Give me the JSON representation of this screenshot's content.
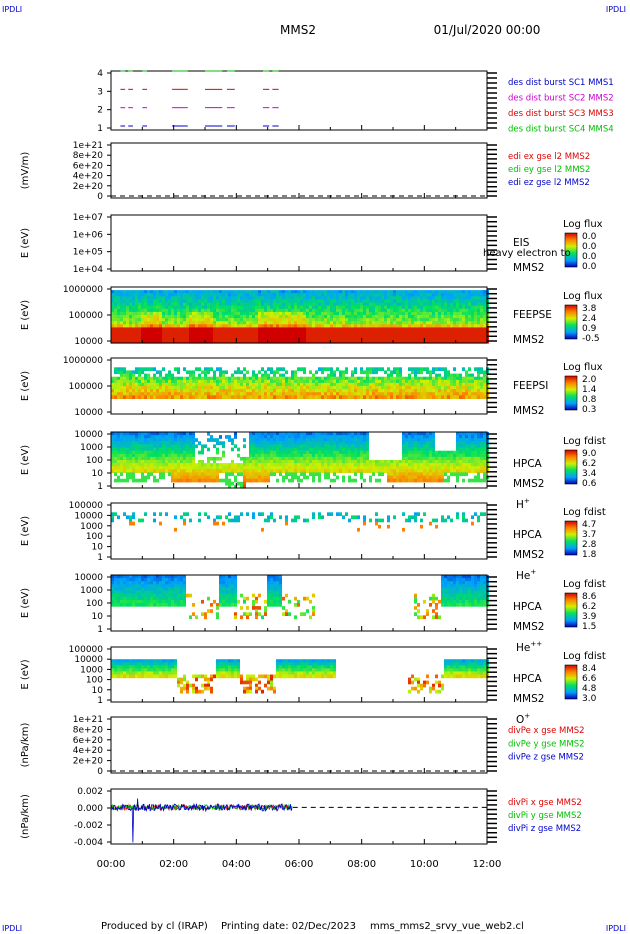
{
  "header": {
    "corner_tl": "IPDLI",
    "corner_tr": "IPDLI",
    "corner_bl": "IPDLI",
    "corner_br": "IPDLI",
    "title": "MMS2",
    "date": "01/Jul/2020 00:00"
  },
  "footer": {
    "produced": "Produced by cl (IRAP)",
    "printing": "Printing date: 02/Dec/2023",
    "file": "mms_mms2_srvy_vue_web2.cl"
  },
  "colors": {
    "red": "#e00000",
    "green": "#00c000",
    "blue": "#0000cc",
    "magenta": "#d000d0"
  },
  "chart_data": [
    {
      "type": "line",
      "panel": "burst-intervals",
      "ylabel": "",
      "yticks": [
        "1",
        "2",
        "3",
        "4"
      ],
      "series": [
        {
          "name": "des dist burst SC1 MMS1",
          "color": "#0000cc",
          "y": 1
        },
        {
          "name": "des dist burst SC2 MMS2",
          "color": "#d000d0",
          "y": 2
        },
        {
          "name": "des dist burst SC3 MMS3",
          "color": "#e00000",
          "y": 3
        },
        {
          "name": "des dist burst SC4 MMS4",
          "color": "#00c000",
          "y": 4
        }
      ],
      "intervals_hours": [
        [
          0.3,
          0.45
        ],
        [
          0.55,
          0.7
        ],
        [
          1.0,
          1.15
        ],
        [
          1.95,
          2.45
        ],
        [
          3.0,
          3.55
        ],
        [
          3.7,
          3.95
        ],
        [
          4.85,
          5.05
        ],
        [
          5.15,
          5.35
        ]
      ]
    },
    {
      "type": "line",
      "panel": "edi-electric-field",
      "ylabel": "(mV/m)",
      "yticks": [
        "0",
        "2e+20",
        "4e+20",
        "6e+20",
        "8e+20",
        "1e+21"
      ],
      "series": [
        {
          "name": "edi ex gse l2 MMS2",
          "color": "#e00000"
        },
        {
          "name": "edi ey gse l2 MMS2",
          "color": "#00c000"
        },
        {
          "name": "edi ez gse l2 MMS2",
          "color": "#0000cc"
        }
      ]
    },
    {
      "type": "heatmap",
      "panel": "eis",
      "ylabel": "E (eV)",
      "yticks": [
        "1e+04",
        "1e+05",
        "1e+06",
        "1e+07"
      ],
      "instrument": "EIS",
      "spacecraft": "MMS2",
      "overflow_label": "heavy electron to",
      "colorbar_title": "Log flux",
      "colorbar_ticks": [
        "0.0",
        "0.0",
        "0.0",
        "0.0"
      ]
    },
    {
      "type": "heatmap",
      "panel": "feepse",
      "ylabel": "E (eV)",
      "yticks": [
        "10000",
        "100000",
        "1000000"
      ],
      "instrument": "FEEPSE",
      "spacecraft": "MMS2",
      "colorbar_title": "Log flux",
      "colorbar_ticks": [
        "3.8",
        "2.4",
        "0.9",
        "-0.5"
      ]
    },
    {
      "type": "heatmap",
      "panel": "feepsi",
      "ylabel": "E (eV)",
      "yticks": [
        "10000",
        "100000",
        "1000000"
      ],
      "instrument": "FEEPSI",
      "spacecraft": "MMS2",
      "colorbar_title": "Log flux",
      "colorbar_ticks": [
        "2.0",
        "1.4",
        "0.8",
        "0.3"
      ]
    },
    {
      "type": "heatmap",
      "panel": "hpca-h",
      "ylabel": "E (eV)",
      "yticks": [
        "1",
        "10",
        "100",
        "1000",
        "10000"
      ],
      "instrument": "HPCA",
      "spacecraft": "MMS2",
      "species": "H",
      "species_sup": "+",
      "colorbar_title": "Log fdist",
      "colorbar_ticks": [
        "9.0",
        "6.2",
        "3.4",
        "0.6"
      ]
    },
    {
      "type": "heatmap",
      "panel": "hpca-he",
      "ylabel": "E (eV)",
      "yticks": [
        "1",
        "10",
        "100",
        "1000",
        "10000",
        "100000"
      ],
      "instrument": "HPCA",
      "spacecraft": "MMS2",
      "species": "He",
      "species_sup": "+",
      "colorbar_title": "Log fdist",
      "colorbar_ticks": [
        "4.7",
        "3.7",
        "2.8",
        "1.8"
      ]
    },
    {
      "type": "heatmap",
      "panel": "hpca-he2",
      "ylabel": "E (eV)",
      "yticks": [
        "1",
        "10",
        "100",
        "1000",
        "10000"
      ],
      "instrument": "HPCA",
      "spacecraft": "MMS2",
      "species": "He",
      "species_sup": "++",
      "colorbar_title": "Log fdist",
      "colorbar_ticks": [
        "8.6",
        "6.2",
        "3.9",
        "1.5"
      ]
    },
    {
      "type": "heatmap",
      "panel": "hpca-o",
      "ylabel": "E (eV)",
      "yticks": [
        "1",
        "10",
        "100",
        "1000",
        "10000",
        "100000"
      ],
      "instrument": "HPCA",
      "spacecraft": "MMS2",
      "species": "O",
      "species_sup": "+",
      "colorbar_title": "Log fdist",
      "colorbar_ticks": [
        "8.4",
        "6.6",
        "4.8",
        "3.0"
      ]
    },
    {
      "type": "line",
      "panel": "divpe",
      "ylabel": "(nPa/km)",
      "yticks": [
        "0",
        "2e+20",
        "4e+20",
        "6e+20",
        "8e+20",
        "1e+21"
      ],
      "series": [
        {
          "name": "divPe x gse MMS2",
          "color": "#e00000"
        },
        {
          "name": "divPe y gse MMS2",
          "color": "#00c000"
        },
        {
          "name": "divPe z gse MMS2",
          "color": "#0000cc"
        }
      ]
    },
    {
      "type": "line",
      "panel": "divpi",
      "ylabel": "(nPa/km)",
      "yticks": [
        "-0.004",
        "-0.002",
        "0.000",
        "0.002"
      ],
      "ylim": [
        -0.005,
        0.0025
      ],
      "data_until_hour": 5.8,
      "series": [
        {
          "name": "divPi x gse MMS2",
          "color": "#e00000"
        },
        {
          "name": "divPi y gse MMS2",
          "color": "#00c000"
        },
        {
          "name": "divPi z gse MMS2",
          "color": "#0000cc"
        }
      ]
    }
  ],
  "x_axis": {
    "ticks": [
      "00:00",
      "02:00",
      "04:00",
      "06:00",
      "08:00",
      "10:00",
      "12:00"
    ],
    "xlim_hours": [
      0,
      12
    ]
  }
}
